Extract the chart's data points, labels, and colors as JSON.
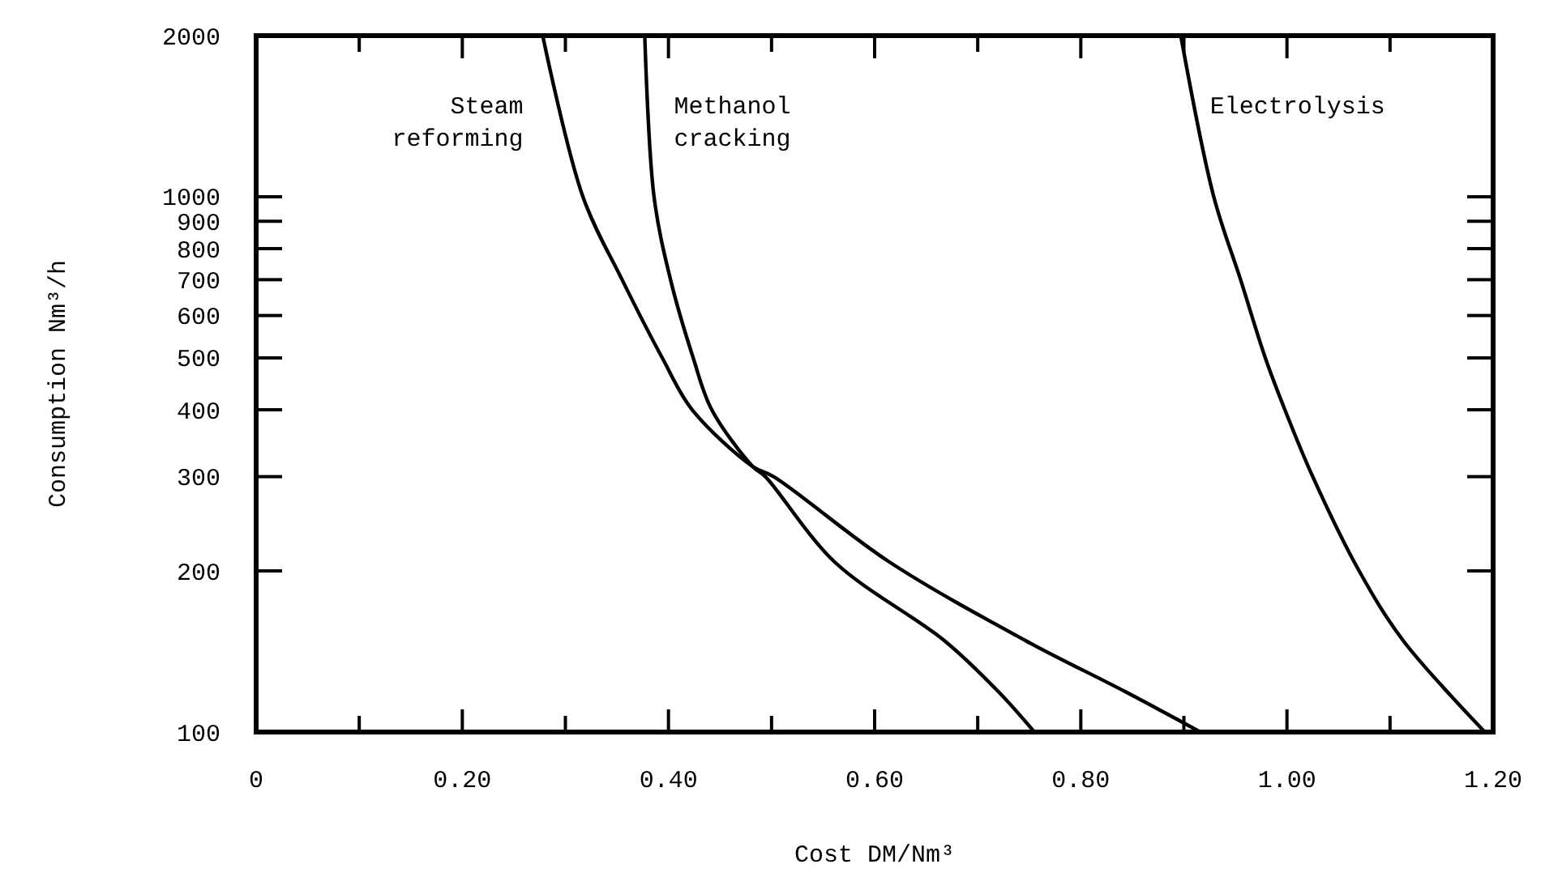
{
  "chart_data": {
    "type": "line",
    "xlabel": "Cost DM/Nm³",
    "ylabel": "Consumption Nm³/h",
    "log": "y",
    "grid": false,
    "line_style": "solid",
    "xlim": [
      0,
      1.2
    ],
    "xticks": [
      0,
      {
        "value": 0.1,
        "label": null
      },
      {
        "value": 0.2,
        "label": "0.20"
      },
      {
        "value": 0.3,
        "label": null
      },
      {
        "value": 0.4,
        "label": "0.40"
      },
      {
        "value": 0.5,
        "label": null
      },
      {
        "value": 0.6,
        "label": "0.60"
      },
      {
        "value": 0.7,
        "label": null
      },
      {
        "value": 0.8,
        "label": "0.80"
      },
      {
        "value": 0.9,
        "label": null
      },
      {
        "value": 1.0,
        "label": "1.00"
      },
      {
        "value": 1.1,
        "label": null
      },
      {
        "value": 1.2,
        "label": "1.20"
      }
    ],
    "ylim": [
      100,
      2000
    ],
    "yticks": [
      100,
      200,
      300,
      400,
      500,
      600,
      700,
      800,
      900,
      1000,
      2000
    ],
    "series": [
      {
        "name": "Steam reforming",
        "color": "#000000",
        "x": [
          0.278,
          0.317,
          0.355,
          0.394,
          0.423,
          0.482,
          0.502,
          0.614,
          0.747,
          0.843,
          0.916
        ],
        "values": [
          2000,
          1000,
          700,
          500,
          400,
          313,
          300,
          208,
          148,
          119,
          100
        ]
      },
      {
        "name": "Methanol cracking",
        "color": "#000000",
        "x": [
          0.377,
          0.386,
          0.402,
          0.424,
          0.442,
          0.482,
          0.494,
          0.561,
          0.668,
          0.72,
          0.755
        ],
        "values": [
          2000,
          1000,
          700,
          500,
          400,
          313,
          300,
          208,
          148,
          119,
          100
        ]
      },
      {
        "name": "Electrolysis",
        "color": "#000000",
        "x": [
          0.897,
          0.929,
          0.955,
          0.979,
          0.998,
          1.025,
          1.07,
          1.113,
          1.192
        ],
        "values": [
          2000,
          1000,
          700,
          500,
          400,
          300,
          200,
          148,
          100
        ]
      }
    ]
  }
}
